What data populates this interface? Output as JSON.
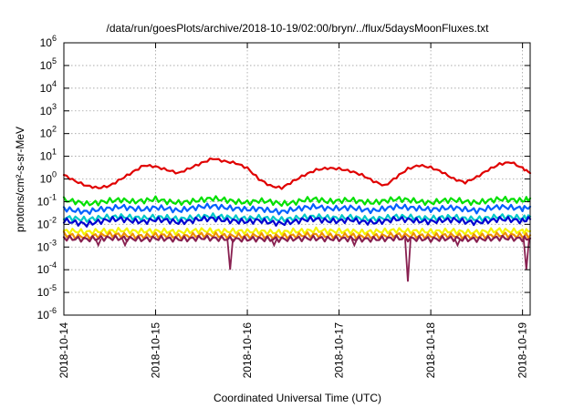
{
  "chart_data": {
    "type": "line",
    "title": "/data/run/goesPlots/archive/2018-10-19/02:00/bryn/../flux/5daysMoonFluxes.txt",
    "xlabel": "Coordinated Universal Time (UTC)",
    "ylabel": "protons/cm²-s-sr-MeV",
    "yscale": "log",
    "ylim": [
      1e-06,
      1000000.0
    ],
    "xlim": [
      "2018-10-14T00:00",
      "2018-10-19T02:00"
    ],
    "x_ticks": [
      "2018-10-14",
      "2018-10-15",
      "2018-10-16",
      "2018-10-17",
      "2018-10-18",
      "2018-10-19"
    ],
    "y_tick_exponents": [
      "-6",
      "-5",
      "-4",
      "-3",
      "-2",
      "-1",
      "0",
      "1",
      "2",
      "3",
      "4",
      "5",
      "6"
    ],
    "grid": true,
    "legend": "none",
    "x": [
      "2018-10-14T00:00",
      "2018-10-14T03:00",
      "2018-10-14T06:00",
      "2018-10-14T09:00",
      "2018-10-14T12:00",
      "2018-10-14T15:00",
      "2018-10-14T18:00",
      "2018-10-14T21:00",
      "2018-10-15T00:00",
      "2018-10-15T03:00",
      "2018-10-15T06:00",
      "2018-10-15T09:00",
      "2018-10-15T12:00",
      "2018-10-15T15:00",
      "2018-10-15T18:00",
      "2018-10-15T21:00",
      "2018-10-16T00:00",
      "2018-10-16T03:00",
      "2018-10-16T06:00",
      "2018-10-16T09:00",
      "2018-10-16T12:00",
      "2018-10-16T15:00",
      "2018-10-16T18:00",
      "2018-10-16T21:00",
      "2018-10-17T00:00",
      "2018-10-17T03:00",
      "2018-10-17T06:00",
      "2018-10-17T09:00",
      "2018-10-17T12:00",
      "2018-10-17T15:00",
      "2018-10-17T18:00",
      "2018-10-17T21:00",
      "2018-10-18T00:00",
      "2018-10-18T03:00",
      "2018-10-18T06:00",
      "2018-10-18T09:00",
      "2018-10-18T12:00",
      "2018-10-18T15:00",
      "2018-10-18T18:00",
      "2018-10-18T21:00",
      "2018-10-19T00:00",
      "2018-10-19T02:00"
    ],
    "series": [
      {
        "color": "#e00000",
        "values": [
          1.5,
          0.8,
          0.5,
          0.4,
          0.5,
          1.0,
          2.0,
          4.0,
          3.5,
          2.5,
          1.8,
          3.0,
          5.0,
          8.0,
          6.0,
          5.0,
          3.0,
          1.0,
          0.5,
          0.4,
          0.8,
          1.5,
          2.5,
          3.0,
          2.8,
          2.2,
          1.5,
          0.8,
          0.5,
          1.2,
          2.8,
          4.0,
          3.2,
          2.0,
          1.0,
          0.7,
          1.2,
          2.5,
          4.5,
          5.5,
          3.0,
          1.8
        ]
      },
      {
        "color": "#00e000",
        "values": [
          0.12,
          0.1,
          0.08,
          0.09,
          0.11,
          0.12,
          0.1,
          0.11,
          0.13,
          0.1,
          0.09,
          0.1,
          0.12,
          0.14,
          0.12,
          0.1,
          0.09,
          0.11,
          0.1,
          0.08,
          0.09,
          0.12,
          0.13,
          0.1,
          0.11,
          0.12,
          0.1,
          0.09,
          0.11,
          0.13,
          0.12,
          0.1,
          0.09,
          0.11,
          0.12,
          0.1,
          0.09,
          0.11,
          0.13,
          0.12,
          0.11,
          0.14
        ]
      },
      {
        "color": "#0060ff",
        "values": [
          0.05,
          0.04,
          0.035,
          0.045,
          0.05,
          0.06,
          0.05,
          0.045,
          0.055,
          0.05,
          0.04,
          0.05,
          0.06,
          0.065,
          0.055,
          0.05,
          0.045,
          0.05,
          0.04,
          0.035,
          0.045,
          0.055,
          0.06,
          0.05,
          0.05,
          0.055,
          0.045,
          0.04,
          0.05,
          0.06,
          0.055,
          0.05,
          0.045,
          0.05,
          0.055,
          0.045,
          0.04,
          0.05,
          0.06,
          0.055,
          0.05,
          0.06
        ]
      },
      {
        "color": "#00c8c8",
        "values": [
          0.02,
          0.018,
          0.016,
          0.019,
          0.021,
          0.022,
          0.02,
          0.019,
          0.021,
          0.02,
          0.017,
          0.019,
          0.022,
          0.023,
          0.021,
          0.019,
          0.018,
          0.02,
          0.018,
          0.016,
          0.018,
          0.021,
          0.022,
          0.02,
          0.019,
          0.021,
          0.018,
          0.017,
          0.019,
          0.022,
          0.021,
          0.019,
          0.018,
          0.02,
          0.021,
          0.018,
          0.017,
          0.019,
          0.022,
          0.021,
          0.019,
          0.022
        ]
      },
      {
        "color": "#0000d0",
        "values": [
          0.015,
          0.012,
          0.01,
          0.013,
          0.016,
          0.017,
          0.014,
          0.013,
          0.016,
          0.015,
          0.012,
          0.014,
          0.017,
          0.018,
          0.015,
          0.014,
          0.013,
          0.015,
          0.012,
          0.011,
          0.013,
          0.016,
          0.017,
          0.014,
          0.014,
          0.016,
          0.013,
          0.012,
          0.014,
          0.017,
          0.016,
          0.014,
          0.013,
          0.015,
          0.016,
          0.013,
          0.012,
          0.014,
          0.017,
          0.016,
          0.014,
          0.017
        ]
      },
      {
        "color": "#f5f500",
        "values": [
          0.005,
          0.005,
          0.0045,
          0.005,
          0.005,
          0.0055,
          0.005,
          0.005,
          0.005,
          0.005,
          0.0045,
          0.005,
          0.0055,
          0.005,
          0.005,
          0.005,
          0.0048,
          0.005,
          0.0045,
          0.0045,
          0.005,
          0.005,
          0.0055,
          0.005,
          0.005,
          0.005,
          0.0045,
          0.0048,
          0.005,
          0.0055,
          0.005,
          0.005,
          0.0048,
          0.005,
          0.005,
          0.0045,
          0.0045,
          0.005,
          0.0055,
          0.005,
          0.005,
          0.005
        ]
      },
      {
        "color": "#f09000",
        "values": [
          0.0035,
          0.003,
          0.0028,
          0.0032,
          0.0035,
          0.0034,
          0.003,
          0.003,
          0.0033,
          0.0032,
          0.0029,
          0.0031,
          0.0034,
          0.0034,
          0.0031,
          0.0031,
          0.003,
          0.0032,
          0.0029,
          0.0029,
          0.0031,
          0.0034,
          0.0034,
          0.0031,
          0.0031,
          0.0032,
          0.0029,
          0.003,
          0.0031,
          0.0034,
          0.0032,
          0.0031,
          0.003,
          0.0032,
          0.0032,
          0.0029,
          0.0029,
          0.0031,
          0.0034,
          0.0033,
          0.0031,
          0.0033
        ]
      },
      {
        "color": "#882050",
        "values": [
          0.0025,
          0.0023,
          0.0022,
          0.0024,
          0.0025,
          0.0024,
          0.0023,
          0.0022,
          0.0024,
          0.0023,
          0.0022,
          0.0023,
          0.0025,
          0.0024,
          0.0023,
          0.0022,
          0.0022,
          0.0023,
          0.0022,
          0.0022,
          0.0023,
          0.0024,
          0.0024,
          0.0023,
          0.0023,
          0.0023,
          0.0022,
          0.0022,
          0.0023,
          0.0025,
          0.0023,
          0.0023,
          0.0022,
          0.0023,
          0.0024,
          0.0022,
          0.0022,
          0.0023,
          0.0025,
          0.0024,
          0.0023,
          0.0024
        ]
      }
    ],
    "dips": [
      {
        "x": "2018-10-14T09:00",
        "y": 0.0012
      },
      {
        "x": "2018-10-14T16:00",
        "y": 0.0012
      },
      {
        "x": "2018-10-15T19:30",
        "y": 0.0001
      },
      {
        "x": "2018-10-16T07:00",
        "y": 0.0012
      },
      {
        "x": "2018-10-17T04:00",
        "y": 0.0012
      },
      {
        "x": "2018-10-17T18:00",
        "y": 3e-05
      },
      {
        "x": "2018-10-18T07:00",
        "y": 0.0012
      },
      {
        "x": "2018-10-19T01:00",
        "y": 0.0001
      }
    ]
  }
}
